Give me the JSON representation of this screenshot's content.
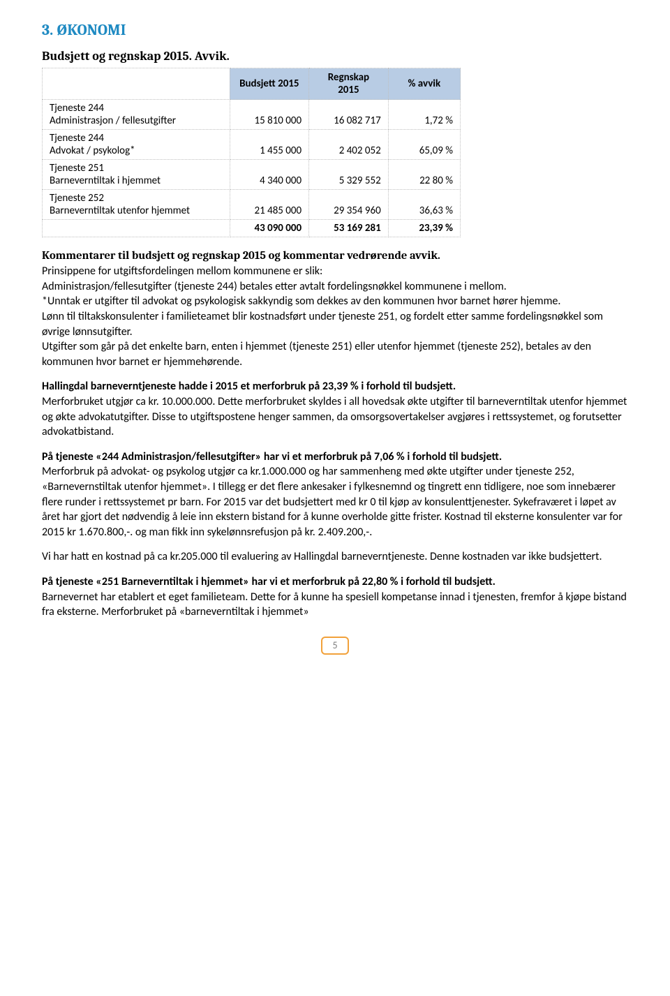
{
  "heading": "3. ØKONOMI",
  "subheading": "Budsjett og regnskap 2015. Avvik.",
  "table": {
    "header": {
      "blank": "",
      "col1": "Budsjett 2015",
      "col2": "Regnskap 2015",
      "col3": "% avvik"
    },
    "rows": [
      {
        "label_top": "Tjeneste 244",
        "label_bot": "Administrasjon / fellesutgifter",
        "budget": "15 810 000",
        "actual": "16 082 717",
        "pct": "1,72 %"
      },
      {
        "label_top": "Tjeneste 244",
        "label_bot": "Advokat / psykolog*",
        "budget": "1 455 000",
        "actual": "2 402 052",
        "pct": "65,09 %"
      },
      {
        "label_top": "Tjeneste 251",
        "label_bot": "Barneverntiltak i hjemmet",
        "budget": "4 340 000",
        "actual": "5 329 552",
        "pct": "22 80 %"
      },
      {
        "label_top": "Tjeneste 252",
        "label_bot": "Barneverntiltak utenfor hjemmet",
        "budget": "21 485 000",
        "actual": "29 354 960",
        "pct": "36,63 %"
      }
    ],
    "total": {
      "budget": "43 090 000",
      "actual": "53 169 281",
      "pct": "23,39 %"
    }
  },
  "comments_title": "Kommentarer til budsjett og regnskap 2015 og kommentar vedrørende avvik.",
  "para1": "Prinsippene for utgiftsfordelingen mellom kommunene er slik:\nAdministrasjon/fellesutgifter (tjeneste 244) betales etter avtalt fordelingsnøkkel kommunene i mellom.\n*Unntak er utgifter til advokat og psykologisk sakkyndig som dekkes av den kommunen hvor barnet hører hjemme.\nLønn til tiltakskonsulenter i familieteamet blir kostnadsført under tjeneste 251, og fordelt etter samme fordelingsnøkkel som øvrige lønnsutgifter.\nUtgifter som går på det enkelte barn, enten i hjemmet (tjeneste 251) eller utenfor hjemmet (tjeneste 252), betales av den kommunen hvor barnet er hjemmehørende.",
  "para2_bold": "Hallingdal barneverntjeneste hadde i 2015 et merforbruk på 23,39 % i forhold til budsjett.",
  "para2_rest": "Merforbruket utgjør ca kr. 10.000.000. Dette merforbruket skyldes i all hovedsak økte utgifter til barneverntiltak utenfor hjemmet og økte advokatutgifter. Disse to utgiftspostene henger sammen, da omsorgsovertakelser avgjøres i rettssystemet, og forutsetter advokatbistand.",
  "para3_bold": "På tjeneste «244 Administrasjon/fellesutgifter» har vi et merforbruk på 7,06 % i forhold til budsjett.",
  "para3_rest": "Merforbruk på advokat- og psykolog utgjør ca kr.1.000.000 og har sammenheng med økte utgifter under tjeneste 252, «Barnevernstiltak utenfor hjemmet». I tillegg er det flere ankesaker i fylkesnemnd og tingrett enn tidligere, noe som innebærer flere runder i rettssystemet pr barn. For 2015 var det budsjettert med kr 0 til kjøp av konsulenttjenester. Sykefraværet i løpet av året har gjort det nødvendig å leie inn ekstern bistand for å kunne overholde gitte frister. Kostnad til eksterne konsulenter var for 2015 kr 1.670.800,-. og man fikk inn sykelønnsrefusjon på kr. 2.409.200,-.",
  "para4": "Vi har hatt en kostnad på ca kr.205.000 til evaluering av Hallingdal barneverntjeneste. Denne kostnaden var ikke budsjettert.",
  "para5_bold": "På tjeneste «251 Barneverntiltak i hjemmet» har vi et merforbruk på 22,80 % i forhold til budsjett.",
  "para5_rest": "Barnevernet har etablert et eget familieteam. Dette for å kunne ha spesiell kompetanse innad i tjenesten, fremfor å kjøpe bistand fra eksterne. Merforbruket på «barneverntiltak i hjemmet»",
  "page_number": "5"
}
